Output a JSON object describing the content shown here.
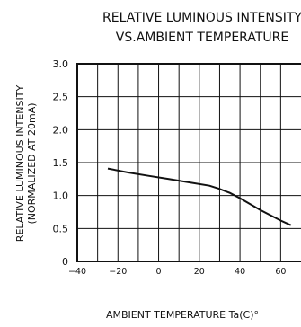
{
  "chart_data": {
    "type": "line",
    "title_lines": [
      "RELATIVE LUMINOUS INTENSITY",
      "VS.AMBIENT TEMPERATURE"
    ],
    "xlabel": "AMBIENT TEMPERATURE Ta(C)°",
    "ylabel_lines": [
      "RELATIVE LUMINOUS INTENSITY",
      "(NORMALIZED AT 20mA)"
    ],
    "xlim": [
      -40,
      70
    ],
    "ylim": [
      0,
      3.0
    ],
    "x_ticks": [
      "−40",
      "−20",
      "0",
      "20",
      "40",
      "60"
    ],
    "x_tick_values": [
      -40,
      -20,
      0,
      20,
      40,
      60
    ],
    "y_ticks": [
      "0",
      "0.5",
      "1.0",
      "1.5",
      "2.0",
      "2.5",
      "3.0"
    ],
    "y_tick_values": [
      0,
      0.5,
      1.0,
      1.5,
      2.0,
      2.5,
      3.0
    ],
    "grid_x_values": [
      -30,
      -20,
      -10,
      0,
      10,
      20,
      30,
      40,
      50,
      60
    ],
    "grid": true,
    "series": [
      {
        "x": [
          -25,
          -15,
          -5,
          5,
          15,
          25,
          30,
          35,
          40,
          50,
          60,
          65
        ],
        "y": [
          1.41,
          1.35,
          1.3,
          1.25,
          1.2,
          1.15,
          1.1,
          1.04,
          0.96,
          0.78,
          0.62,
          0.55
        ]
      }
    ]
  }
}
